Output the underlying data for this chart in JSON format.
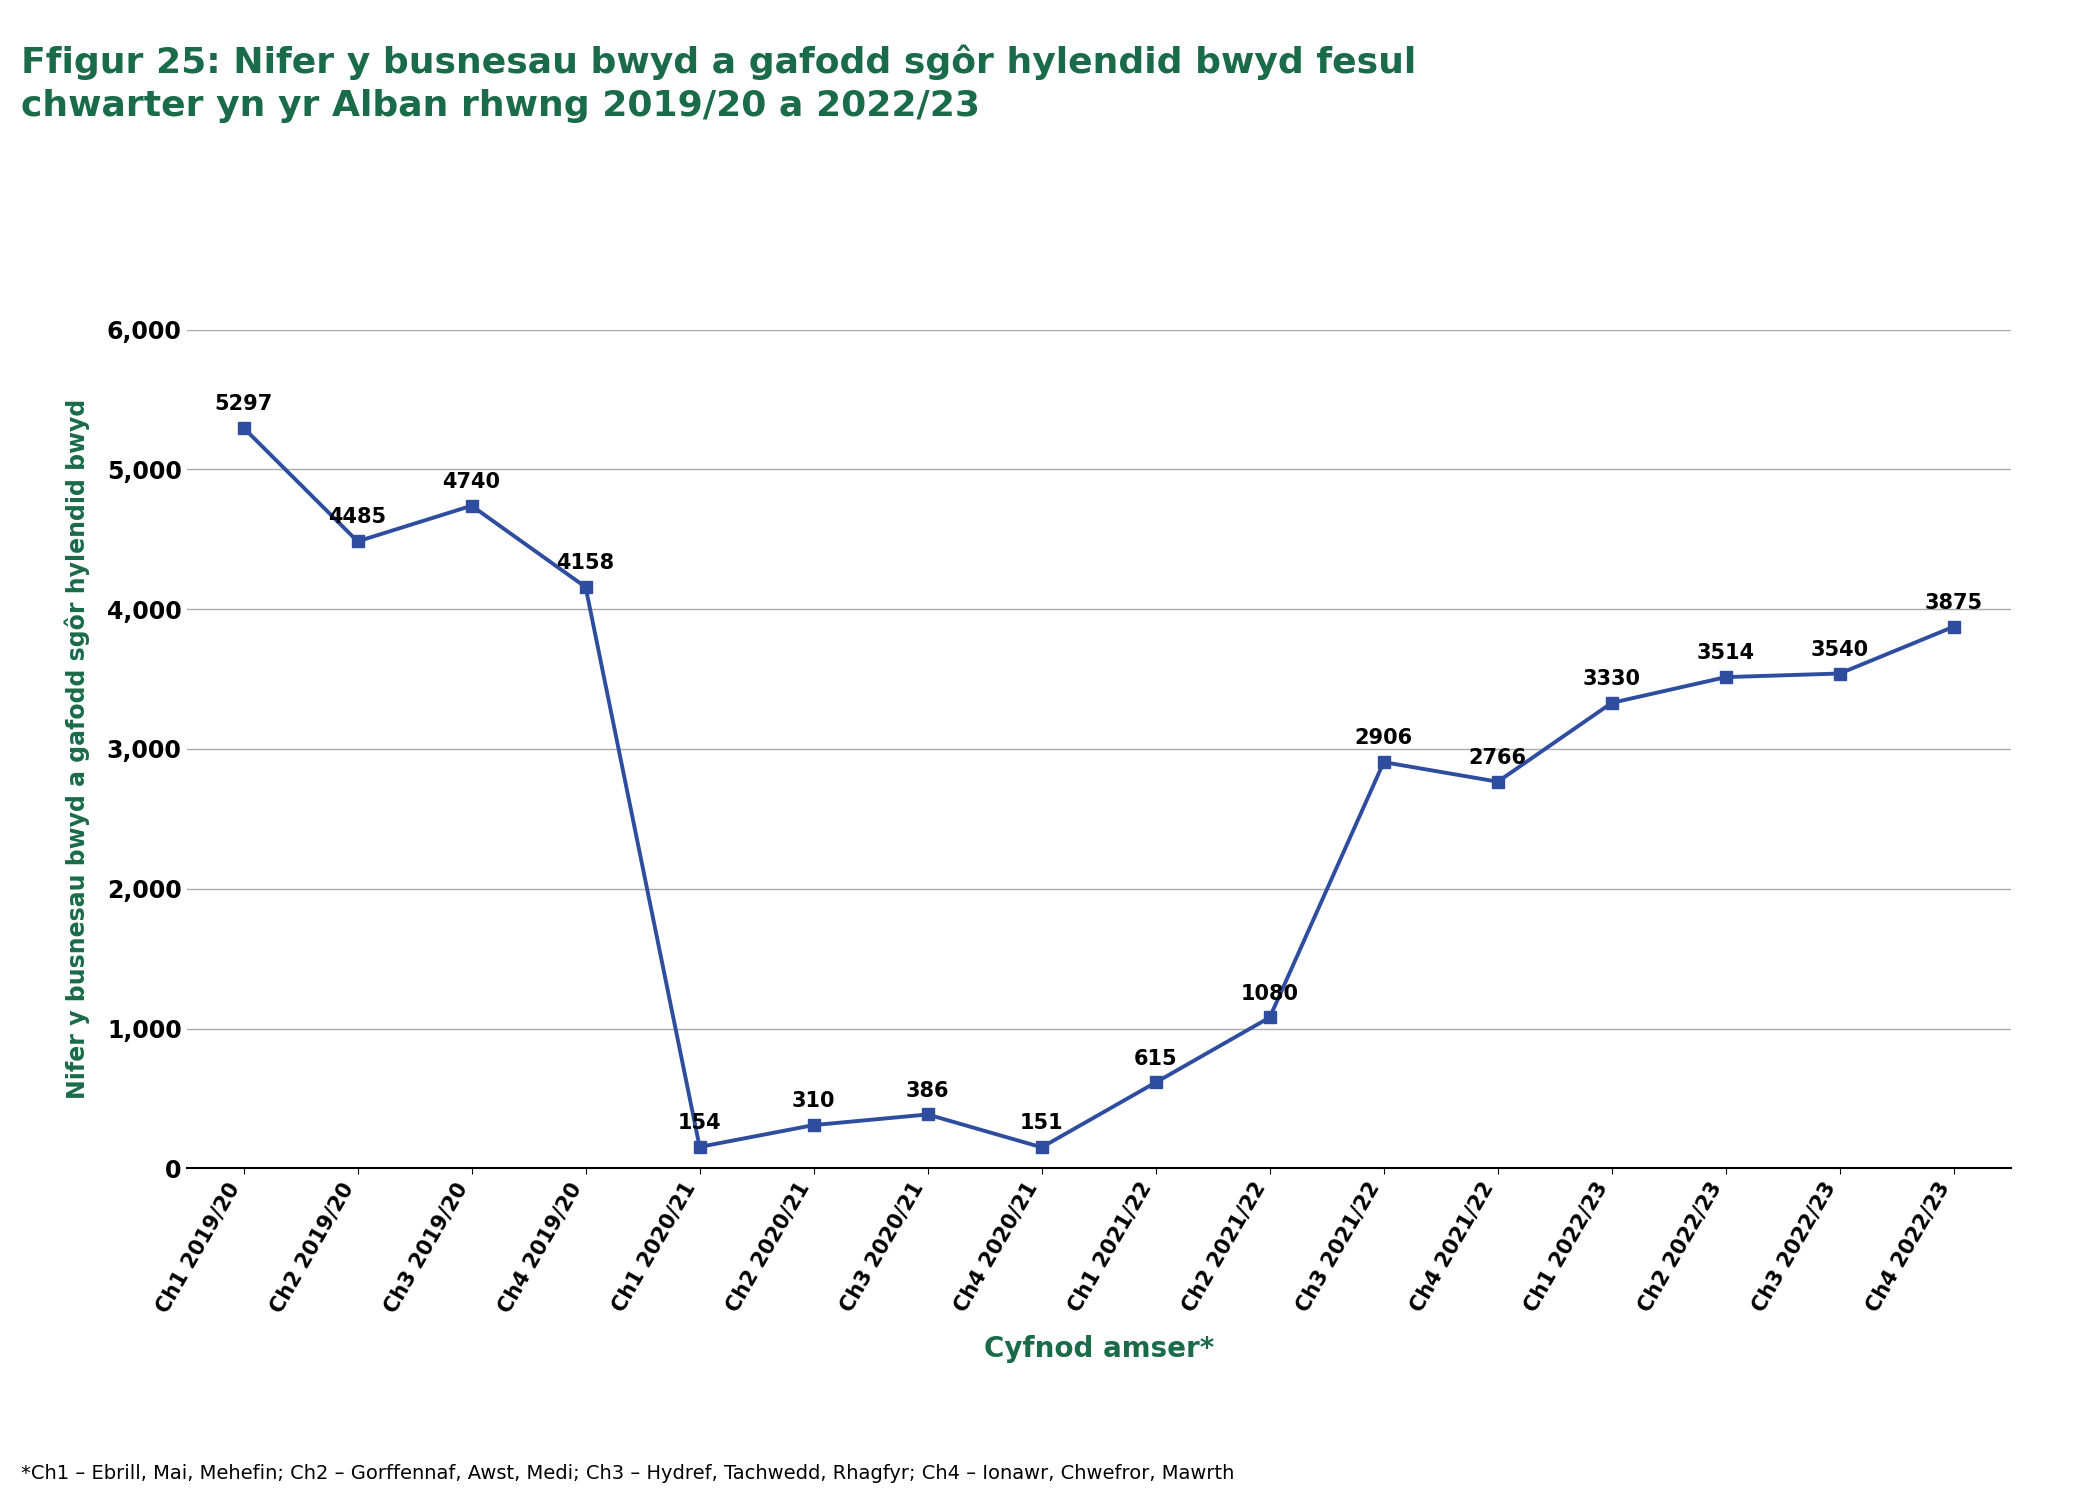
{
  "title_line1": "Ffigur 25: Nifer y busnesau bwyd a gafodd sgôr hylendid bwyd fesul",
  "title_line2": "chwarter yn yr Alban rhwng 2019/20 a 2022/23",
  "title_color": "#1a6b4a",
  "xlabel": "Cyfnod amser*",
  "ylabel": "Nifer y busnesau bwyd a gafodd sgôr hylendid bwyd",
  "footnote": "*Ch1 – Ebrill, Mai, Mehefin; Ch2 – Gorffennaf, Awst, Medi; Ch3 – Hydref, Tachwedd, Rhagfyr; Ch4 – Ionawr, Chwefror, Mawrth",
  "categories": [
    "Ch1 2019/20",
    "Ch2 2019/20",
    "Ch3 2019/20",
    "Ch4 2019/20",
    "Ch1 2020/21",
    "Ch2 2020/21",
    "Ch3 2020/21",
    "Ch4 2020/21",
    "Ch1 2021/22",
    "Ch2 2021/22",
    "Ch3 2021/22",
    "Ch4 2021/22",
    "Ch1 2022/23",
    "Ch2 2022/23",
    "Ch3 2022/23",
    "Ch4 2022/23"
  ],
  "values": [
    5297,
    4485,
    4740,
    4158,
    154,
    310,
    386,
    151,
    615,
    1080,
    2906,
    2766,
    3330,
    3514,
    3540,
    3875
  ],
  "line_color": "#2e4d9e",
  "marker_color": "#2e4d9e",
  "marker_style": "s",
  "marker_size": 9,
  "line_width": 2.8,
  "ylim": [
    0,
    6000
  ],
  "yticks": [
    0,
    1000,
    2000,
    3000,
    4000,
    5000,
    6000
  ],
  "grid_color": "#aaaaaa",
  "background_color": "#ffffff",
  "axis_label_color": "#1a6b4a",
  "tick_label_color": "#000000",
  "title_fontsize": 26,
  "ylabel_fontsize": 17,
  "xtick_fontsize": 15,
  "ytick_fontsize": 17,
  "footnote_fontsize": 14,
  "data_label_fontsize": 15,
  "xlabel_fontsize": 20
}
